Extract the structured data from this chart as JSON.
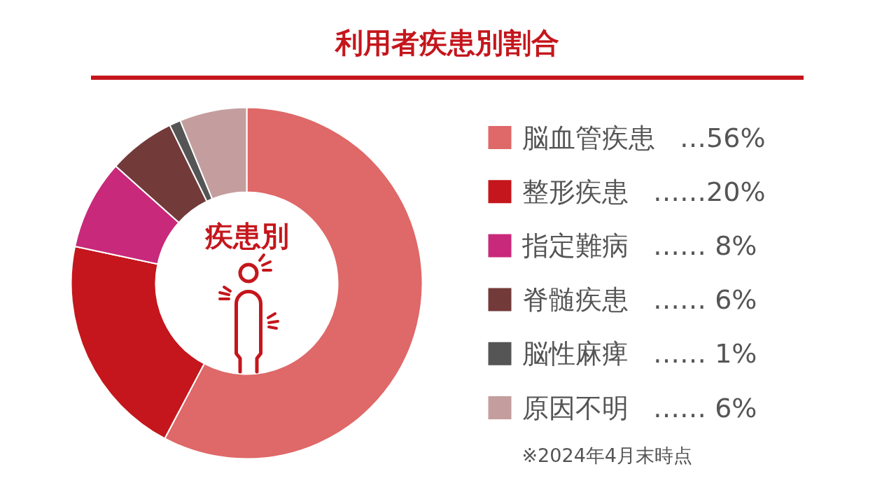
{
  "chart_data": {
    "type": "donut",
    "title": "利用者疾患別割合",
    "categories": [
      "脳血管疾患",
      "整形疾患",
      "指定難病",
      "脊髄疾患",
      "脳性麻痺",
      "原因不明"
    ],
    "values": [
      56,
      20,
      8,
      6,
      1,
      6
    ],
    "value_labels": [
      "…56%",
      "……20%",
      "……  8%",
      "……  6%",
      "……  1%",
      "……  6%"
    ],
    "colors": [
      "#df6868",
      "#c4161c",
      "#c8297a",
      "#733a3a",
      "#555555",
      "#c49e9e"
    ],
    "legend": "right",
    "annotations": [
      "疾患別",
      "※2024年4月末時点"
    ]
  }
}
